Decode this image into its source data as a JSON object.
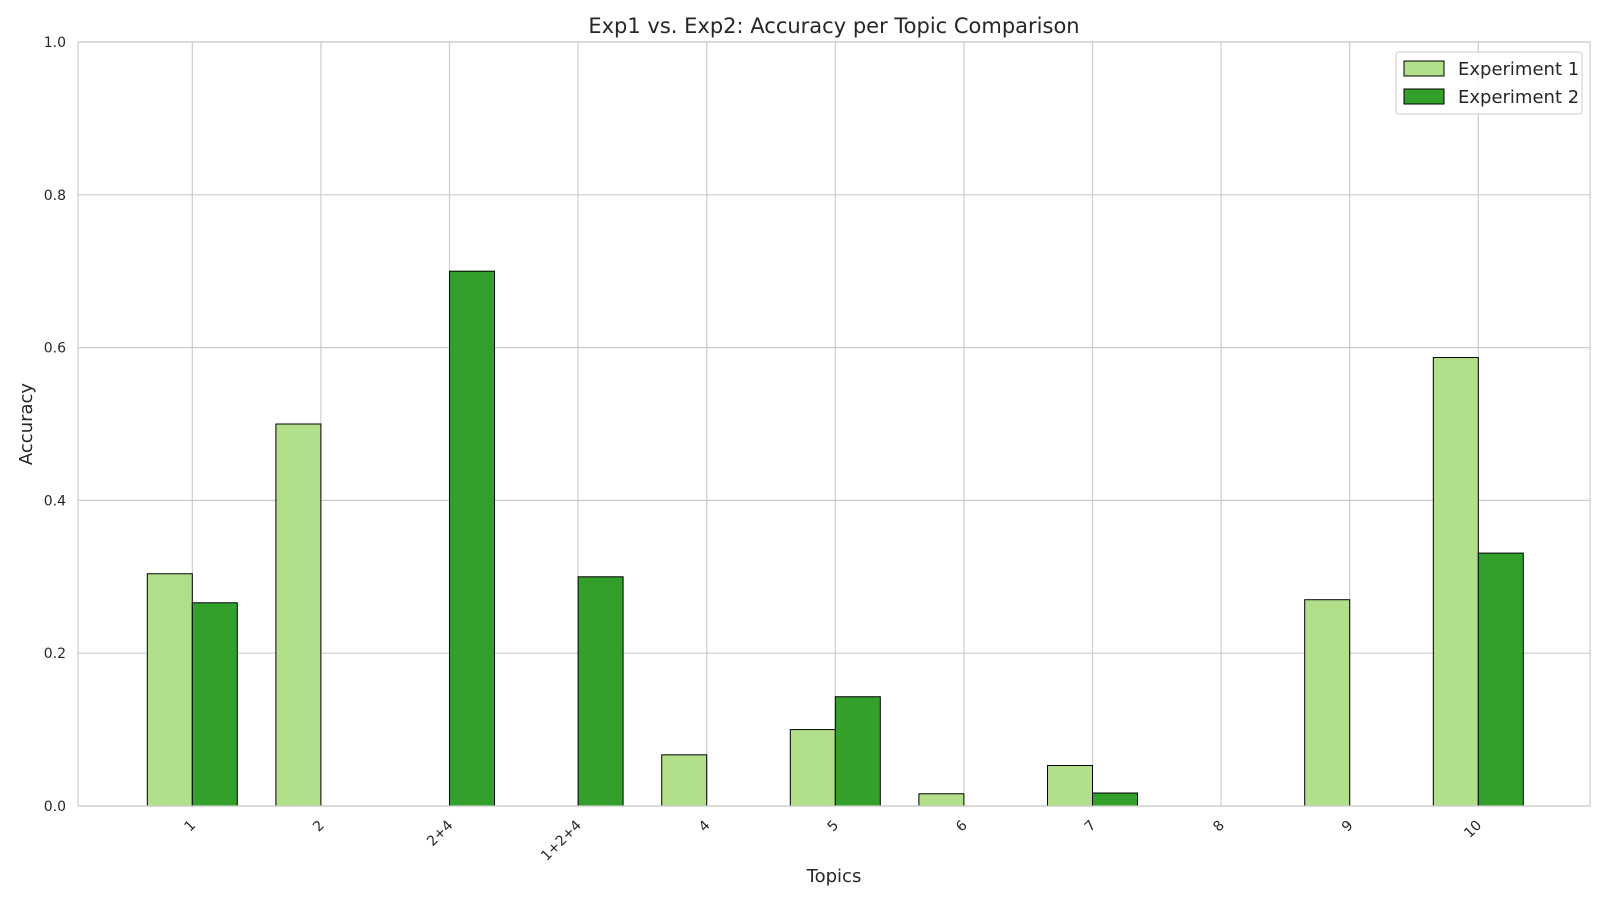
{
  "chart_data": {
    "type": "bar",
    "title": "Exp1 vs. Exp2: Accuracy per Topic Comparison",
    "xlabel": "Topics",
    "ylabel": "Accuracy",
    "ylim": [
      0,
      1.0
    ],
    "yticks": [
      "0.0",
      "0.2",
      "0.4",
      "0.6",
      "0.8",
      "1.0"
    ],
    "categories": [
      "1",
      "2",
      "2+4",
      "1+2+4",
      "4",
      "5",
      "6",
      "7",
      "8",
      "9",
      "10"
    ],
    "series": [
      {
        "name": "Experiment 1",
        "color": "#b2df8a",
        "values": [
          0.304,
          0.5,
          0.0,
          0.0,
          0.067,
          0.1,
          0.016,
          0.053,
          0.0,
          0.27,
          0.587
        ]
      },
      {
        "name": "Experiment 2",
        "color": "#33a02c",
        "values": [
          0.266,
          0.0,
          0.7,
          0.3,
          0.0,
          0.143,
          0.0,
          0.017,
          0.0,
          0.0,
          0.331
        ]
      }
    ],
    "grid": true,
    "legend_position": "top-right",
    "tick_label_rotation": 45
  }
}
